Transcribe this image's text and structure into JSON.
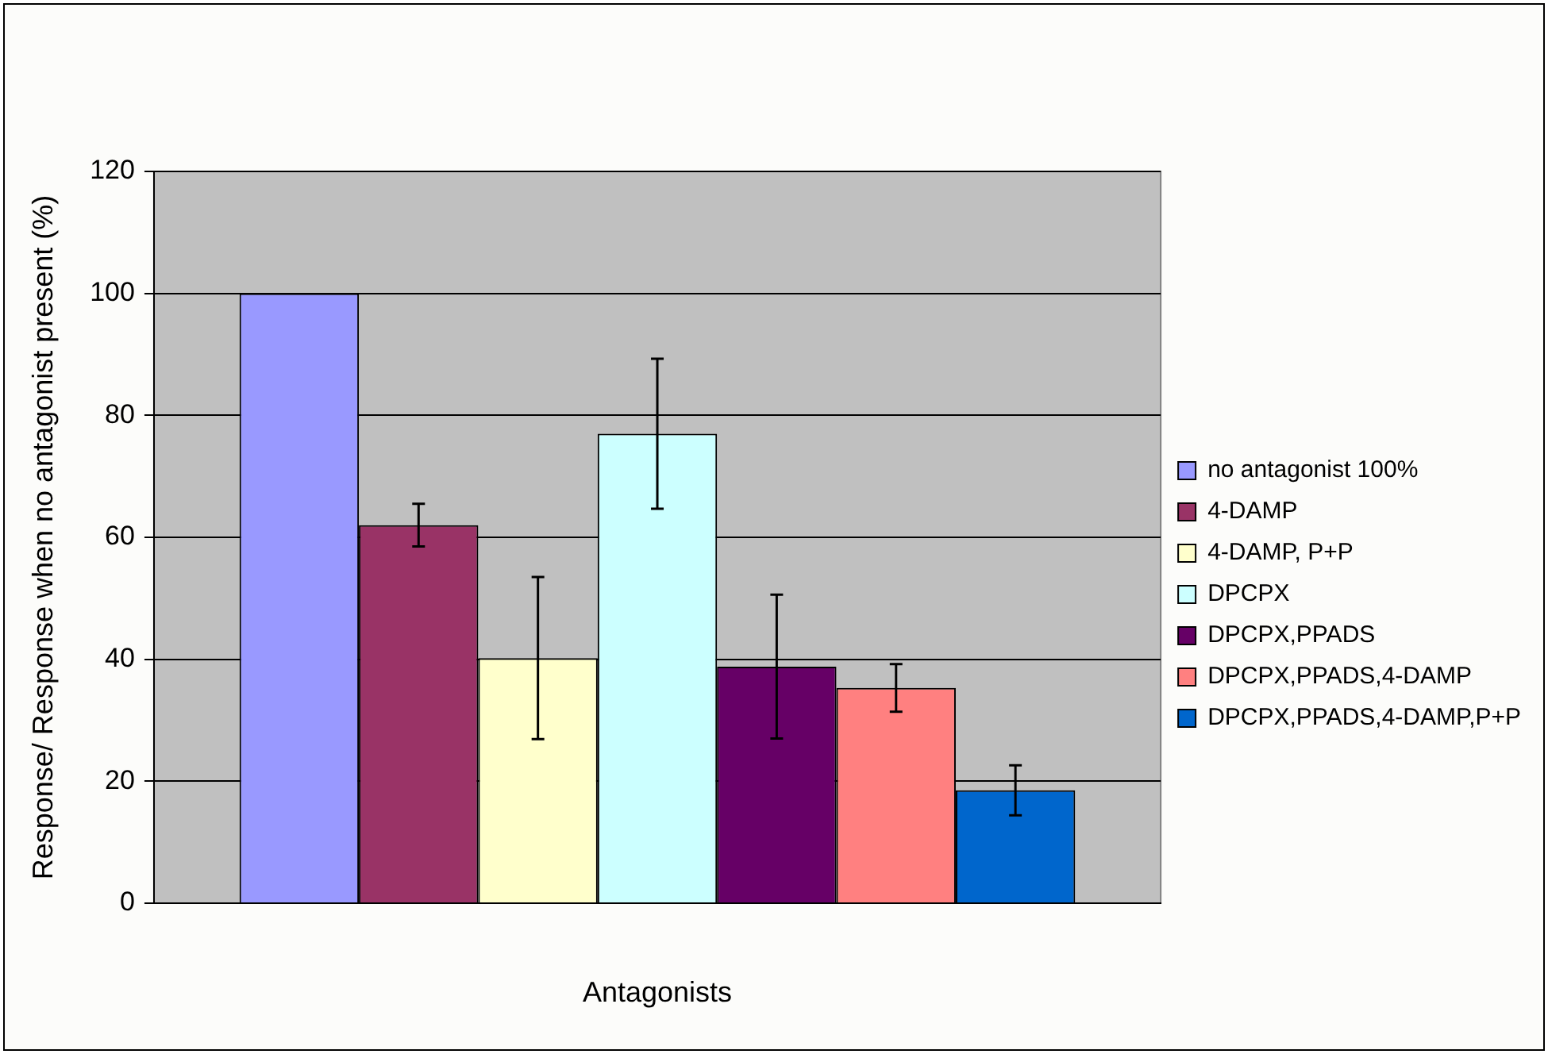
{
  "chart_data": {
    "type": "bar",
    "xlabel": "Antagonists",
    "ylabel": "Response/ Response when no antagonist present (%)",
    "categories": [
      null
    ],
    "series": [
      {
        "name": "no antagonist 100%",
        "color": "#9999ff",
        "values": [
          100
        ]
      },
      {
        "name": "4-DAMP",
        "color": "#993366",
        "values": [
          62
        ],
        "errors": [
          3.5
        ]
      },
      {
        "name": "4-DAMP, P+P",
        "color": "#ffffcc",
        "values": [
          40.2
        ],
        "errors": [
          13.3
        ]
      },
      {
        "name": "DPCPX",
        "color": "#ccffff",
        "values": [
          77
        ],
        "errors": [
          12.3
        ]
      },
      {
        "name": "DPCPX,PPADS",
        "color": "#660066",
        "values": [
          38.8
        ],
        "errors": [
          11.8
        ]
      },
      {
        "name": "DPCPX,PPADS,4-DAMP",
        "color": "#ff8080",
        "values": [
          35.3
        ],
        "errors": [
          3.9
        ]
      },
      {
        "name": "DPCPX,PPADS,4-DAMP,P+P",
        "color": "#0066cc",
        "values": [
          18.5
        ],
        "errors": [
          4.1
        ]
      }
    ],
    "ylim": [
      0,
      120
    ],
    "yticks": [
      0,
      20,
      40,
      60,
      80,
      100,
      120
    ],
    "grid": "y",
    "legend": "right"
  }
}
